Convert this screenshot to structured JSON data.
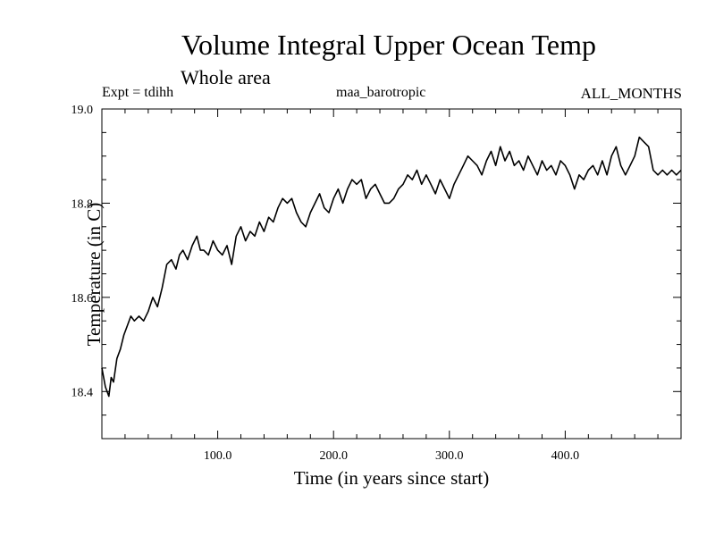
{
  "header": {
    "title": "Volume Integral Upper Ocean Temp",
    "subtitle": "Whole area",
    "expt": "Expt = tdihh",
    "run": "maa_barotropic",
    "months": "ALL_MONTHS"
  },
  "chart_data": {
    "type": "line",
    "title": "Volume Integral Upper Ocean Temp",
    "subtitle": "Whole area",
    "xlabel": "Time (in years since start)",
    "ylabel": "Temperature (in C)",
    "xlim": [
      0,
      500
    ],
    "ylim": [
      18.3,
      19.0
    ],
    "xticks": [
      100,
      200,
      300,
      400
    ],
    "xtick_labels": [
      "100.0",
      "200.0",
      "300.0",
      "400.0"
    ],
    "yticks": [
      18.4,
      18.6,
      18.8,
      19.0
    ],
    "ytick_labels": [
      "18.4",
      "18.6",
      "18.8",
      "19.0"
    ],
    "series": [
      {
        "name": "Volume Integral Upper Ocean Temp",
        "color": "#000000",
        "x": [
          0,
          3,
          6,
          8,
          10,
          13,
          16,
          19,
          22,
          25,
          28,
          32,
          36,
          40,
          44,
          48,
          52,
          56,
          60,
          64,
          67,
          70,
          74,
          78,
          82,
          85,
          88,
          92,
          96,
          100,
          104,
          108,
          112,
          116,
          120,
          124,
          128,
          132,
          136,
          140,
          144,
          148,
          152,
          156,
          160,
          164,
          168,
          172,
          176,
          180,
          184,
          188,
          192,
          196,
          200,
          204,
          208,
          212,
          216,
          220,
          224,
          228,
          232,
          236,
          240,
          244,
          248,
          252,
          256,
          260,
          264,
          268,
          272,
          276,
          280,
          284,
          288,
          292,
          296,
          300,
          304,
          308,
          312,
          316,
          320,
          324,
          328,
          332,
          336,
          340,
          344,
          348,
          352,
          356,
          360,
          364,
          368,
          372,
          376,
          380,
          384,
          388,
          392,
          396,
          400,
          404,
          408,
          412,
          416,
          420,
          424,
          428,
          432,
          436,
          440,
          444,
          448,
          452,
          456,
          460,
          464,
          468,
          472,
          476,
          480,
          484,
          488,
          492,
          496,
          500
        ],
        "values": [
          18.45,
          18.41,
          18.39,
          18.43,
          18.42,
          18.47,
          18.49,
          18.52,
          18.54,
          18.56,
          18.55,
          18.56,
          18.55,
          18.57,
          18.6,
          18.58,
          18.62,
          18.67,
          18.68,
          18.66,
          18.69,
          18.7,
          18.68,
          18.71,
          18.73,
          18.7,
          18.7,
          18.69,
          18.72,
          18.7,
          18.69,
          18.71,
          18.67,
          18.73,
          18.75,
          18.72,
          18.74,
          18.73,
          18.76,
          18.74,
          18.77,
          18.76,
          18.79,
          18.81,
          18.8,
          18.81,
          18.78,
          18.76,
          18.75,
          18.78,
          18.8,
          18.82,
          18.79,
          18.78,
          18.81,
          18.83,
          18.8,
          18.83,
          18.85,
          18.84,
          18.85,
          18.81,
          18.83,
          18.84,
          18.82,
          18.8,
          18.8,
          18.81,
          18.83,
          18.84,
          18.86,
          18.85,
          18.87,
          18.84,
          18.86,
          18.84,
          18.82,
          18.85,
          18.83,
          18.81,
          18.84,
          18.86,
          18.88,
          18.9,
          18.89,
          18.88,
          18.86,
          18.89,
          18.91,
          18.88,
          18.92,
          18.89,
          18.91,
          18.88,
          18.89,
          18.87,
          18.9,
          18.88,
          18.86,
          18.89,
          18.87,
          18.88,
          18.86,
          18.89,
          18.88,
          18.86,
          18.83,
          18.86,
          18.85,
          18.87,
          18.88,
          18.86,
          18.89,
          18.86,
          18.9,
          18.92,
          18.88,
          18.86,
          18.88,
          18.9,
          18.94,
          18.93,
          18.92,
          18.87,
          18.86,
          18.87,
          18.86,
          18.87,
          18.86,
          18.87
        ]
      }
    ]
  }
}
